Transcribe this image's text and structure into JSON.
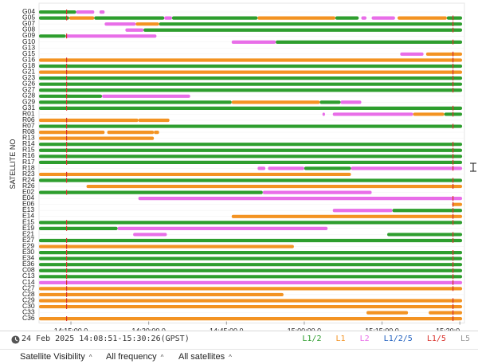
{
  "colors": {
    "L1/2": "#2e9e2e",
    "L1": "#f39322",
    "L2": "#e86ee8",
    "L1/2/5": "#1f5fbf",
    "L1/5": "#d9312b",
    "L5": "#999999"
  },
  "chart_data": {
    "type": "timeline",
    "ylabel": "SATELLITE NO",
    "x_range": [
      "14:08:51",
      "15:30:26"
    ],
    "xticks": [
      "14:15:00.0",
      "14:30:00.0",
      "14:45:00.0",
      "15:00:00.0",
      "15:15:00.0",
      "15:30:0"
    ],
    "satellites": [
      "G04",
      "G05",
      "G07",
      "G08",
      "G09",
      "G10",
      "G13",
      "G15",
      "G16",
      "G18",
      "G21",
      "G23",
      "G26",
      "G27",
      "G28",
      "G29",
      "G31",
      "R01",
      "R06",
      "R07",
      "R08",
      "R13",
      "R14",
      "R15",
      "R16",
      "R17",
      "R18",
      "R23",
      "R24",
      "R26",
      "E02",
      "E04",
      "E06",
      "E13",
      "E14",
      "E15",
      "E19",
      "E21",
      "E27",
      "E29",
      "E30",
      "E34",
      "E36",
      "C08",
      "C13",
      "C14",
      "C27",
      "C28",
      "C29",
      "C30",
      "C33",
      "C36"
    ],
    "series": [
      {
        "sat": "G04",
        "segments": [
          [
            "14:08:51",
            "14:16:00",
            "L1/2"
          ],
          [
            "14:16:00",
            "14:19:30",
            "L2"
          ],
          [
            "14:20:30",
            "14:21:30",
            "L2"
          ]
        ]
      },
      {
        "sat": "G05",
        "segments": [
          [
            "14:08:51",
            "14:14:40",
            "L1/2"
          ],
          [
            "14:14:40",
            "14:19:30",
            "L1"
          ],
          [
            "14:19:30",
            "14:33:00",
            "L1/2"
          ],
          [
            "14:33:00",
            "14:34:30",
            "L2"
          ],
          [
            "14:34:30",
            "14:51:00",
            "L1/2"
          ],
          [
            "14:51:00",
            "15:06:00",
            "L1"
          ],
          [
            "15:06:00",
            "15:10:30",
            "L1/2"
          ],
          [
            "15:11:00",
            "15:12:00",
            "L2"
          ],
          [
            "15:13:00",
            "15:17:30",
            "L2"
          ],
          [
            "15:18:00",
            "15:27:30",
            "L1"
          ],
          [
            "15:27:30",
            "15:30:26",
            "L1/2"
          ]
        ]
      },
      {
        "sat": "G07",
        "segments": [
          [
            "14:21:30",
            "14:27:30",
            "L2"
          ],
          [
            "14:27:30",
            "14:32:00",
            "L1"
          ],
          [
            "14:32:00",
            "15:30:26",
            "L1/2"
          ]
        ]
      },
      {
        "sat": "G08",
        "segments": [
          [
            "14:25:30",
            "14:29:00",
            "L2"
          ],
          [
            "14:29:00",
            "15:30:26",
            "L1/2"
          ]
        ]
      },
      {
        "sat": "G09",
        "segments": [
          [
            "14:08:51",
            "14:14:00",
            "L1/2"
          ],
          [
            "14:14:00",
            "14:31:30",
            "L2"
          ]
        ]
      },
      {
        "sat": "G10",
        "segments": [
          [
            "14:46:00",
            "14:54:30",
            "L2"
          ],
          [
            "14:54:30",
            "15:30:26",
            "L1/2"
          ]
        ]
      },
      {
        "sat": "G13",
        "segments": []
      },
      {
        "sat": "G15",
        "segments": [
          [
            "15:18:30",
            "15:23:00",
            "L2"
          ],
          [
            "15:23:30",
            "15:30:26",
            "L1"
          ]
        ]
      },
      {
        "sat": "G16",
        "segments": [
          [
            "14:08:51",
            "15:30:26",
            "L1"
          ]
        ]
      },
      {
        "sat": "G18",
        "segments": [
          [
            "14:08:51",
            "15:30:26",
            "L1/2"
          ]
        ]
      },
      {
        "sat": "G21",
        "segments": [
          [
            "14:08:51",
            "15:30:26",
            "L1"
          ]
        ]
      },
      {
        "sat": "G23",
        "segments": [
          [
            "14:08:51",
            "15:30:26",
            "L1/2"
          ]
        ]
      },
      {
        "sat": "G26",
        "segments": [
          [
            "14:08:51",
            "15:30:26",
            "L1/2"
          ]
        ]
      },
      {
        "sat": "G27",
        "segments": [
          [
            "14:08:51",
            "15:30:26",
            "L1/2"
          ]
        ]
      },
      {
        "sat": "G28",
        "segments": [
          [
            "14:08:51",
            "14:21:00",
            "L1/2"
          ],
          [
            "14:21:00",
            "14:38:00",
            "L2"
          ]
        ]
      },
      {
        "sat": "G29",
        "segments": [
          [
            "14:08:51",
            "14:46:00",
            "L1/2"
          ],
          [
            "14:46:00",
            "15:03:00",
            "L1"
          ],
          [
            "15:03:00",
            "15:07:00",
            "L1/2"
          ],
          [
            "15:07:00",
            "15:11:00",
            "L2"
          ]
        ]
      },
      {
        "sat": "G31",
        "segments": [
          [
            "14:08:51",
            "15:30:26",
            "L1/2"
          ]
        ]
      },
      {
        "sat": "R01",
        "segments": [
          [
            "15:03:30",
            "15:04:00",
            "L2"
          ],
          [
            "15:05:30",
            "15:21:00",
            "L2"
          ],
          [
            "15:21:00",
            "15:27:00",
            "L1"
          ],
          [
            "15:27:00",
            "15:30:26",
            "L1/2"
          ]
        ]
      },
      {
        "sat": "R06",
        "segments": [
          [
            "14:08:51",
            "14:28:00",
            "L1"
          ],
          [
            "14:28:00",
            "14:34:00",
            "L1"
          ]
        ]
      },
      {
        "sat": "R07",
        "segments": [
          [
            "14:08:51",
            "15:30:26",
            "L1/2"
          ]
        ]
      },
      {
        "sat": "R08",
        "segments": [
          [
            "14:08:51",
            "14:21:30",
            "L1"
          ],
          [
            "14:22:00",
            "14:31:00",
            "L1"
          ],
          [
            "14:31:00",
            "14:32:00",
            "L1"
          ]
        ]
      },
      {
        "sat": "R13",
        "segments": [
          [
            "14:08:51",
            "14:31:00",
            "L1"
          ]
        ]
      },
      {
        "sat": "R14",
        "segments": [
          [
            "14:08:51",
            "15:30:26",
            "L1/2"
          ]
        ]
      },
      {
        "sat": "R15",
        "segments": [
          [
            "14:08:51",
            "15:30:26",
            "L1/2"
          ]
        ]
      },
      {
        "sat": "R16",
        "segments": [
          [
            "14:08:51",
            "15:30:26",
            "L1/2"
          ]
        ]
      },
      {
        "sat": "R17",
        "segments": [
          [
            "14:08:51",
            "15:30:26",
            "L1/2"
          ]
        ]
      },
      {
        "sat": "R18",
        "segments": [
          [
            "14:51:00",
            "14:52:30",
            "L2"
          ],
          [
            "14:53:00",
            "15:00:00",
            "L2"
          ],
          [
            "15:00:00",
            "15:09:00",
            "L1/2"
          ],
          [
            "15:09:00",
            "15:30:26",
            "L2"
          ]
        ]
      },
      {
        "sat": "R23",
        "segments": [
          [
            "14:08:51",
            "15:09:00",
            "L1"
          ]
        ]
      },
      {
        "sat": "R24",
        "segments": [
          [
            "14:08:51",
            "15:30:26",
            "L1/2"
          ]
        ]
      },
      {
        "sat": "R26",
        "segments": [
          [
            "14:18:00",
            "15:30:26",
            "L1"
          ]
        ]
      },
      {
        "sat": "E02",
        "segments": [
          [
            "14:08:51",
            "14:52:00",
            "L1/2"
          ],
          [
            "14:52:00",
            "15:13:00",
            "L2"
          ]
        ]
      },
      {
        "sat": "E04",
        "segments": [
          [
            "14:28:00",
            "15:30:26",
            "L2"
          ]
        ]
      },
      {
        "sat": "E06",
        "segments": [
          [
            "15:28:30",
            "15:30:26",
            "L1"
          ]
        ]
      },
      {
        "sat": "E13",
        "segments": [
          [
            "15:05:30",
            "15:17:00",
            "L2"
          ],
          [
            "15:17:00",
            "15:30:26",
            "L1/2"
          ]
        ]
      },
      {
        "sat": "E14",
        "segments": [
          [
            "14:46:00",
            "15:30:26",
            "L1"
          ]
        ]
      },
      {
        "sat": "E15",
        "segments": [
          [
            "14:08:51",
            "15:30:26",
            "L1/2"
          ]
        ]
      },
      {
        "sat": "E19",
        "segments": [
          [
            "14:08:51",
            "14:24:00",
            "L1/2"
          ],
          [
            "14:24:00",
            "15:04:30",
            "L2"
          ]
        ]
      },
      {
        "sat": "E21",
        "segments": [
          [
            "14:27:00",
            "14:33:30",
            "L2"
          ],
          [
            "15:16:00",
            "15:30:26",
            "L1/2"
          ]
        ]
      },
      {
        "sat": "E27",
        "segments": [
          [
            "14:08:51",
            "15:30:26",
            "L1/2"
          ]
        ]
      },
      {
        "sat": "E29",
        "segments": [
          [
            "14:08:51",
            "14:58:00",
            "L1"
          ]
        ]
      },
      {
        "sat": "E30",
        "segments": [
          [
            "14:08:51",
            "15:30:26",
            "L1/2"
          ]
        ]
      },
      {
        "sat": "E34",
        "segments": [
          [
            "14:08:51",
            "15:30:26",
            "L1/2"
          ]
        ]
      },
      {
        "sat": "E36",
        "segments": [
          [
            "14:08:51",
            "15:30:26",
            "L1/2"
          ]
        ]
      },
      {
        "sat": "C08",
        "segments": [
          [
            "14:08:51",
            "15:30:26",
            "L1/2"
          ]
        ]
      },
      {
        "sat": "C13",
        "segments": [
          [
            "14:08:51",
            "15:30:26",
            "L1/2"
          ]
        ]
      },
      {
        "sat": "C14",
        "segments": [
          [
            "14:08:51",
            "15:30:26",
            "L2"
          ]
        ]
      },
      {
        "sat": "C27",
        "segments": [
          [
            "14:08:51",
            "15:30:26",
            "L1"
          ]
        ]
      },
      {
        "sat": "C28",
        "segments": [
          [
            "14:08:51",
            "14:56:00",
            "L1"
          ]
        ]
      },
      {
        "sat": "C29",
        "segments": [
          [
            "14:08:51",
            "15:30:26",
            "L1"
          ]
        ]
      },
      {
        "sat": "C30",
        "segments": [
          [
            "14:08:51",
            "15:30:26",
            "L1"
          ]
        ]
      },
      {
        "sat": "C33",
        "segments": [
          [
            "15:12:00",
            "15:20:00",
            "L1"
          ],
          [
            "15:24:00",
            "15:30:26",
            "L1"
          ]
        ]
      },
      {
        "sat": "C36",
        "segments": [
          [
            "14:08:51",
            "15:30:26",
            "L1"
          ]
        ]
      }
    ]
  },
  "status": {
    "clock_icon": "clock-icon",
    "time_range": "24 Feb 2025 14:08:51-15:30:26(GPST)"
  },
  "legend": [
    "L1/2",
    "L1",
    "L2",
    "L1/2/5",
    "L1/5",
    "L5"
  ],
  "controls": {
    "view_label": "Satellite Visibility",
    "freq_label": "All frequency",
    "sats_label": "All satellites",
    "caret": "^"
  }
}
